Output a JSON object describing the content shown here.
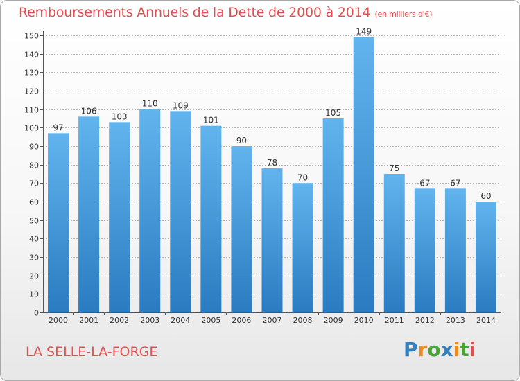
{
  "title": "Remboursements Annuels de la Dette de 2000 à 2014",
  "unit_note": "(en milliers d'€)",
  "town": "LA SELLE-LA-FORGE",
  "brand": {
    "letters": [
      {
        "char": "P",
        "color": "#2f7fc1"
      },
      {
        "char": "r",
        "color": "#f08a1c"
      },
      {
        "char": "o",
        "color": "#4aa339"
      },
      {
        "char": "x",
        "color": "#2f7fc1"
      },
      {
        "char": "i",
        "color": "#f08a1c"
      },
      {
        "char": "t",
        "color": "#4aa339"
      },
      {
        "char": "i",
        "color": "#e1504f"
      }
    ]
  },
  "colors": {
    "title": "#e1504f",
    "bar_top": "#62b4ee",
    "bar_bottom": "#2a7bc0",
    "grid": "#b5b5b5",
    "axis_text": "#333333"
  },
  "chart_data": {
    "type": "bar",
    "title": "Remboursements Annuels de la Dette de 2000 à 2014",
    "categories": [
      "2000",
      "2001",
      "2002",
      "2003",
      "2004",
      "2005",
      "2006",
      "2007",
      "2008",
      "2009",
      "2010",
      "2011",
      "2012",
      "2013",
      "2014"
    ],
    "values": [
      97,
      106,
      103,
      110,
      109,
      101,
      90,
      78,
      70,
      105,
      149,
      75,
      67,
      67,
      60
    ],
    "data_labels": [
      "97",
      "106",
      "103",
      "110",
      "109",
      "101",
      "90",
      "78",
      "70",
      "105",
      "149",
      "75",
      "67",
      "67",
      "60"
    ],
    "ylim": [
      0,
      150
    ],
    "yticks": [
      0,
      10,
      20,
      30,
      40,
      50,
      60,
      70,
      80,
      90,
      100,
      110,
      120,
      130,
      140,
      150
    ],
    "ytick_labels": [
      "0",
      "10",
      "20",
      "30",
      "40",
      "50",
      "60",
      "70",
      "80",
      "90",
      "100",
      "110",
      "120",
      "130",
      "140",
      "150"
    ],
    "grid": true,
    "legend": "none"
  }
}
